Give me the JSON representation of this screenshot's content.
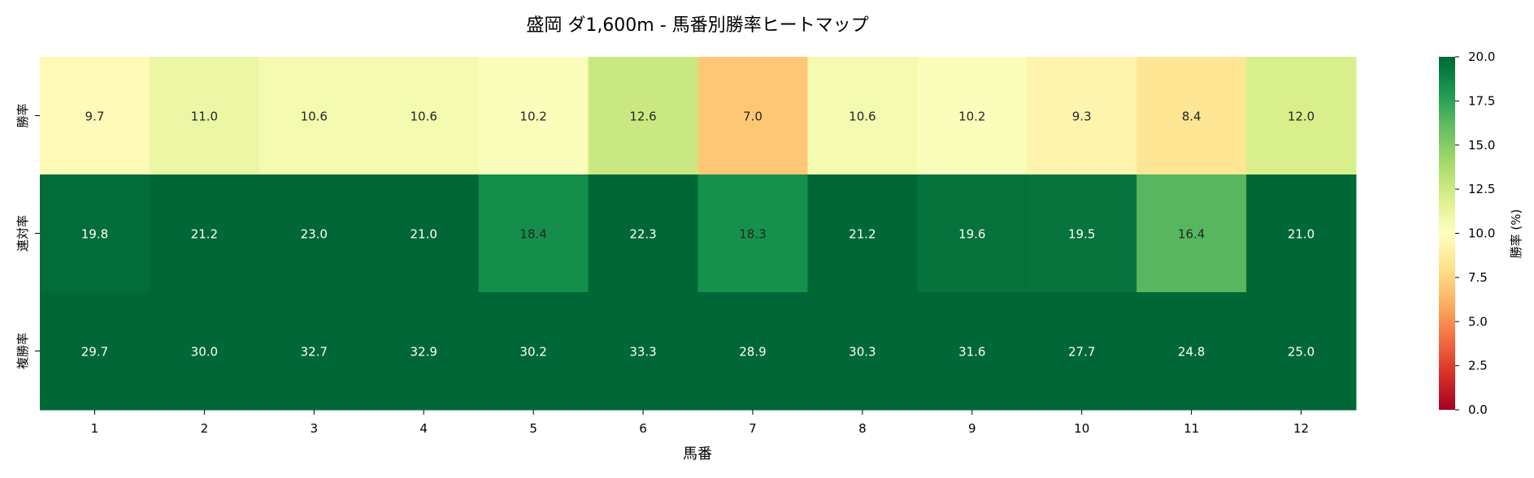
{
  "chart_data": {
    "type": "heatmap",
    "title": "盛岡 ダ1,600m - 馬番別勝率ヒートマップ",
    "xlabel": "馬番",
    "ylabel": "",
    "x_categories": [
      "1",
      "2",
      "3",
      "4",
      "5",
      "6",
      "7",
      "8",
      "9",
      "10",
      "11",
      "12"
    ],
    "y_categories": [
      "勝率",
      "連対率",
      "複勝率"
    ],
    "values": [
      [
        9.7,
        11.0,
        10.6,
        10.6,
        10.2,
        12.6,
        7.0,
        10.6,
        10.2,
        9.3,
        8.4,
        12.0
      ],
      [
        19.8,
        21.2,
        23.0,
        21.0,
        18.4,
        22.3,
        18.3,
        21.2,
        19.6,
        19.5,
        16.4,
        21.0
      ],
      [
        29.7,
        30.0,
        32.7,
        32.9,
        30.2,
        33.3,
        28.9,
        30.3,
        31.6,
        27.7,
        24.8,
        25.0
      ]
    ],
    "colormap": "RdYlGn",
    "colormap_stops": [
      "#a50026",
      "#d73027",
      "#f46d43",
      "#fdae61",
      "#fee08b",
      "#ffffbf",
      "#d9ef8b",
      "#a6d96a",
      "#66bd63",
      "#1a9850",
      "#006837"
    ],
    "vmin": 0,
    "vmax": 20,
    "colorbar": {
      "label": "勝率 (%)",
      "ticks": [
        "0.0",
        "2.5",
        "5.0",
        "7.5",
        "10.0",
        "12.5",
        "15.0",
        "17.5",
        "20.0"
      ]
    },
    "annotation_format": "0.1f"
  }
}
